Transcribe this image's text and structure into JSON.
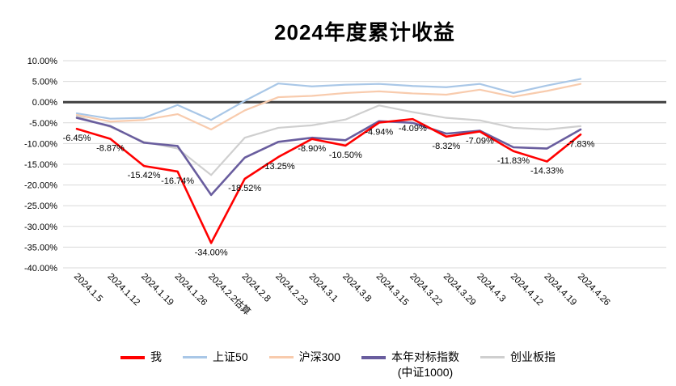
{
  "chart_data": {
    "type": "line",
    "title": "2024年度累计收益",
    "categories": [
      "2024.1.5",
      "2024.1.12",
      "2024.1.19",
      "2024.1.26",
      "2024.2.2估算",
      "2024.2.8",
      "2024.2.23",
      "2024.3.1",
      "2024.3.8",
      "2024.3.15",
      "2024.3.22",
      "2024.3.29",
      "2024.4.3",
      "2024.4.12",
      "2024.4.19",
      "2024.4.26"
    ],
    "series": [
      {
        "name": "我",
        "color": "#FF0000",
        "width": 2.6,
        "values": [
          -6.45,
          -8.87,
          -15.42,
          -16.74,
          -34.0,
          -18.52,
          -13.25,
          -8.9,
          -10.5,
          -4.94,
          -4.09,
          -8.32,
          -7.09,
          -11.83,
          -14.33,
          -7.83
        ]
      },
      {
        "name": "上证50",
        "color": "#A9C7E7",
        "width": 2.2,
        "values": [
          -2.7,
          -4.0,
          -3.8,
          -0.7,
          -4.3,
          0.3,
          4.5,
          3.8,
          4.2,
          4.4,
          3.9,
          3.6,
          4.4,
          2.2,
          4.0,
          5.6
        ]
      },
      {
        "name": "沪深300",
        "color": "#F8CBAD",
        "width": 2.2,
        "values": [
          -3.1,
          -4.7,
          -4.3,
          -2.9,
          -6.6,
          -2.0,
          1.2,
          1.5,
          2.2,
          2.6,
          2.1,
          1.8,
          3.0,
          1.3,
          2.7,
          4.4
        ]
      },
      {
        "name": "本年对标指数",
        "name2": "(中证1000)",
        "color": "#695D9E",
        "width": 2.6,
        "values": [
          -3.8,
          -5.8,
          -9.8,
          -10.6,
          -22.4,
          -13.4,
          -9.6,
          -8.6,
          -9.2,
          -4.6,
          -5.0,
          -7.6,
          -6.9,
          -10.9,
          -11.2,
          -6.6
        ]
      },
      {
        "name": "创业板指",
        "color": "#CFCFCF",
        "width": 2.2,
        "values": [
          -3.4,
          -6.0,
          -9.6,
          -11.2,
          -17.6,
          -8.6,
          -6.2,
          -5.6,
          -4.2,
          -0.8,
          -2.4,
          -3.8,
          -4.4,
          -6.2,
          -6.6,
          -5.8
        ]
      }
    ],
    "data_labels": [
      "-6.45%",
      "-8.87%",
      "-15.42%",
      "-16.74%",
      "-34.00%",
      "-18.52%",
      "-13.25%",
      "-8.90%",
      "-10.50%",
      "-4.94%",
      "-4.09%",
      "-8.32%",
      "-7.09%",
      "-11.83%",
      "-14.33%",
      "-7.83%"
    ],
    "y_axis": {
      "min": -40,
      "max": 10,
      "step": 5,
      "tick_labels": [
        "10.00%",
        "5.00%",
        "0.00%",
        "-5.00%",
        "-10.00%",
        "-15.00%",
        "-20.00%",
        "-25.00%",
        "-30.00%",
        "-35.00%",
        "-40.00%"
      ]
    },
    "grid": true,
    "legend_position": "bottom",
    "colors": {
      "gridline": "#D9D9D9",
      "zero_line": "#404040",
      "text": "#000000",
      "background": "#FFFFFF"
    }
  }
}
